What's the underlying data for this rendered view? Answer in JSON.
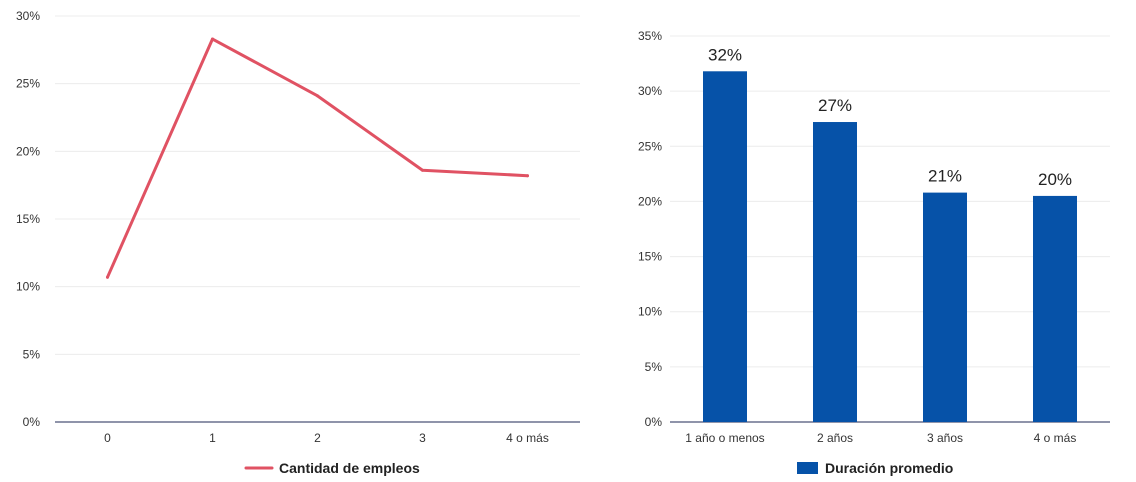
{
  "chart_data": [
    {
      "type": "line",
      "categories": [
        "0",
        "1",
        "2",
        "3",
        "4 o más"
      ],
      "series": [
        {
          "name": "Cantidad de empleos",
          "values": [
            10.7,
            28.3,
            24.1,
            18.6,
            18.2
          ]
        }
      ],
      "ylim": [
        0,
        30
      ],
      "yticks": [
        "0%",
        "5%",
        "10%",
        "15%",
        "20%",
        "25%",
        "30%"
      ],
      "colors": {
        "line": "#e05263"
      },
      "grid": true,
      "legend_position": "bottom"
    },
    {
      "type": "bar",
      "categories": [
        "1 año o menos",
        "2 años",
        "3 años",
        "4 o más"
      ],
      "series": [
        {
          "name": "Duración promedio",
          "values": [
            31.8,
            27.2,
            20.8,
            20.5
          ]
        }
      ],
      "data_labels": [
        "32%",
        "27%",
        "21%",
        "20%"
      ],
      "ylim": [
        0,
        35
      ],
      "yticks": [
        "0%",
        "5%",
        "10%",
        "15%",
        "20%",
        "25%",
        "30%",
        "35%"
      ],
      "colors": {
        "bar": "#0652a8"
      },
      "grid": true,
      "legend_position": "bottom"
    }
  ]
}
